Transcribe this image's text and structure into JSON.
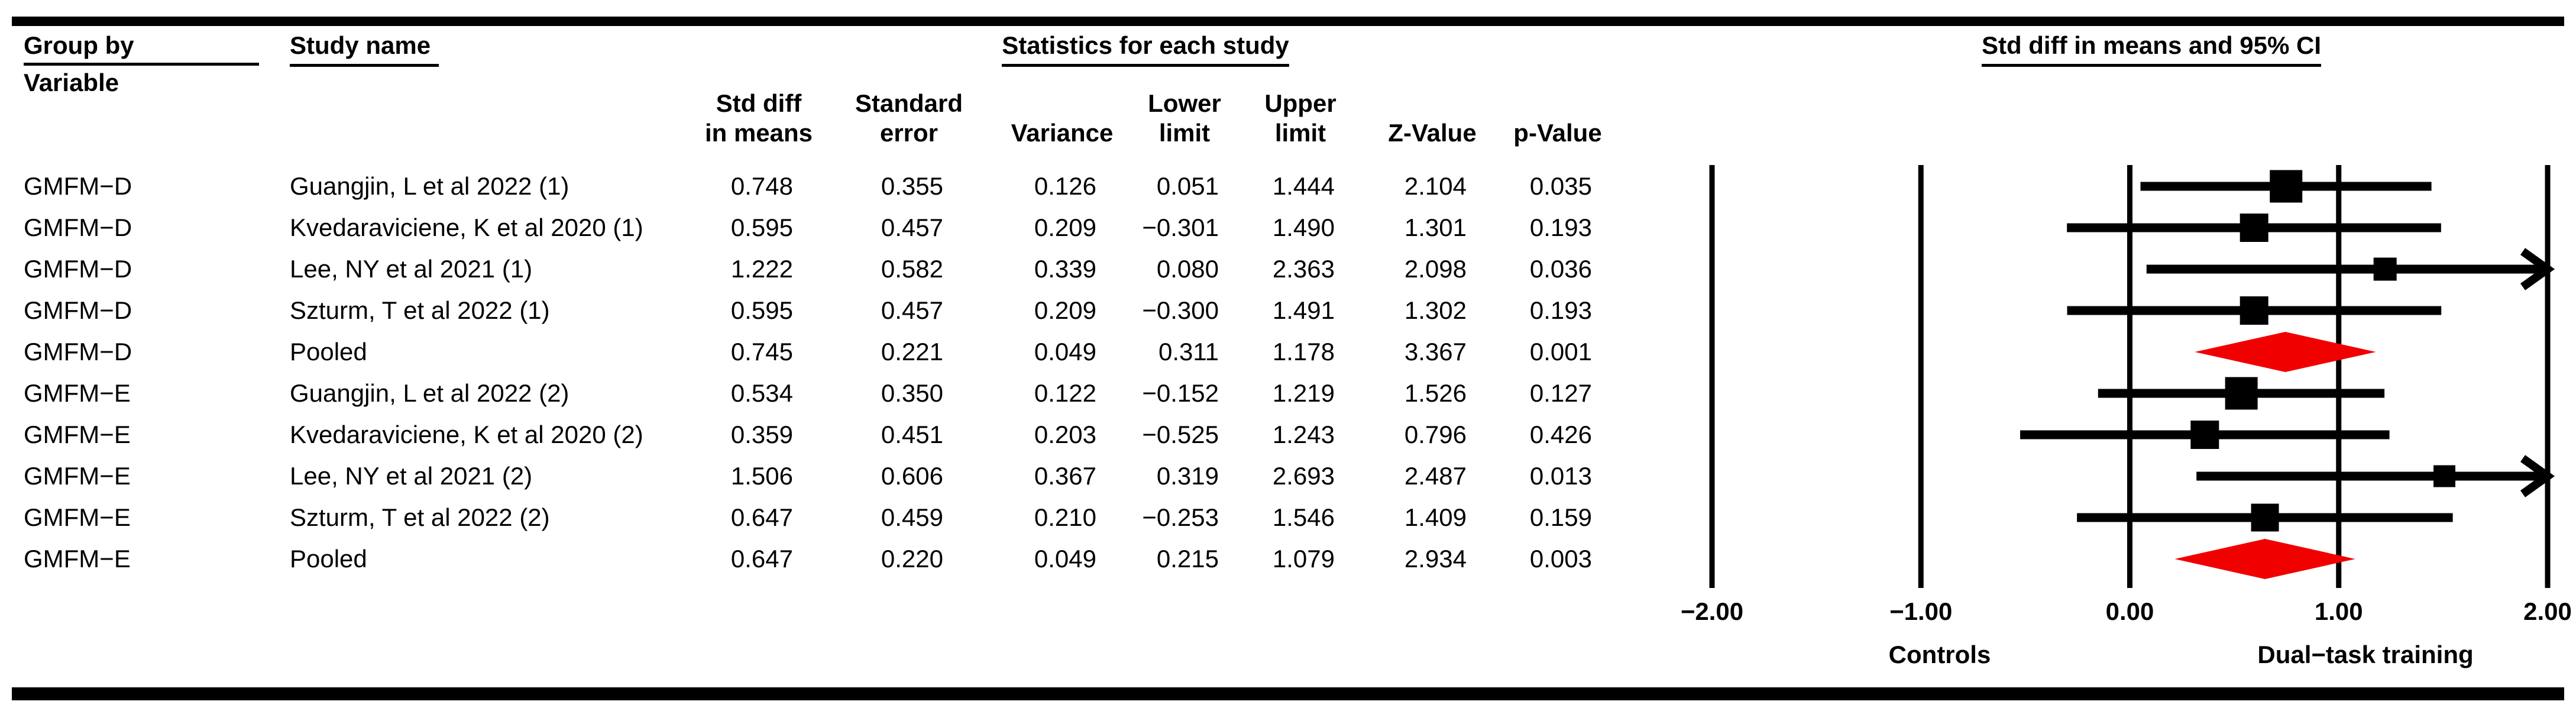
{
  "figure": {
    "headers": {
      "group_by_line1": "Group by",
      "group_by_line2": "Variable",
      "study_name": "Study name",
      "statistics": "Statistics for each study",
      "plot_title": "Std diff in means and 95% CI"
    },
    "stat_columns": [
      [
        "Std diff",
        "in means"
      ],
      [
        "Standard",
        "error"
      ],
      [
        "Variance"
      ],
      [
        "Lower",
        "limit"
      ],
      [
        "Upper",
        "limit"
      ],
      [
        "Z-Value"
      ],
      [
        "p-Value"
      ]
    ],
    "colors": {
      "text": "#000000",
      "rules": "#000000",
      "square_marker": "#000000",
      "diamond_marker": "#f10000"
    }
  },
  "chart_data": {
    "type": "forest",
    "title": "Std diff in means and 95% CI",
    "x_axis": {
      "min": -2,
      "max": 2,
      "tick_values": [
        -2,
        -1,
        0,
        1,
        2
      ],
      "tick_labels": [
        "-2.00",
        "-1.00",
        "0.00",
        "1.00",
        "2.00"
      ],
      "left_region_label": "Controls",
      "right_region_label": "Dual-task training",
      "grid": true
    },
    "rows": [
      {
        "group": "GMFM-D",
        "study": "Guangjin, L et al 2022 (1)",
        "std_diff": "0.748",
        "std_err": "0.355",
        "variance": "0.126",
        "lower": "0.051",
        "upper": "1.444",
        "z": "2.104",
        "p": "0.035",
        "marker": "square"
      },
      {
        "group": "GMFM-D",
        "study": "Kvedaraviciene, K et al 2020 (1)",
        "std_diff": "0.595",
        "std_err": "0.457",
        "variance": "0.209",
        "lower": "-0.301",
        "upper": "1.490",
        "z": "1.301",
        "p": "0.193",
        "marker": "square"
      },
      {
        "group": "GMFM-D",
        "study": "Lee, NY et al 2021 (1)",
        "std_diff": "1.222",
        "std_err": "0.582",
        "variance": "0.339",
        "lower": "0.080",
        "upper": "2.363",
        "z": "2.098",
        "p": "0.036",
        "marker": "square"
      },
      {
        "group": "GMFM-D",
        "study": "Szturm, T et al 2022 (1)",
        "std_diff": "0.595",
        "std_err": "0.457",
        "variance": "0.209",
        "lower": "-0.300",
        "upper": "1.491",
        "z": "1.302",
        "p": "0.193",
        "marker": "square"
      },
      {
        "group": "GMFM-D",
        "study": "Pooled",
        "std_diff": "0.745",
        "std_err": "0.221",
        "variance": "0.049",
        "lower": "0.311",
        "upper": "1.178",
        "z": "3.367",
        "p": "0.001",
        "marker": "diamond"
      },
      {
        "group": "GMFM-E",
        "study": "Guangjin, L et al 2022 (2)",
        "std_diff": "0.534",
        "std_err": "0.350",
        "variance": "0.122",
        "lower": "-0.152",
        "upper": "1.219",
        "z": "1.526",
        "p": "0.127",
        "marker": "square"
      },
      {
        "group": "GMFM-E",
        "study": "Kvedaraviciene, K et al 2020 (2)",
        "std_diff": "0.359",
        "std_err": "0.451",
        "variance": "0.203",
        "lower": "-0.525",
        "upper": "1.243",
        "z": "0.796",
        "p": "0.426",
        "marker": "square"
      },
      {
        "group": "GMFM-E",
        "study": "Lee, NY et al 2021 (2)",
        "std_diff": "1.506",
        "std_err": "0.606",
        "variance": "0.367",
        "lower": "0.319",
        "upper": "2.693",
        "z": "2.487",
        "p": "0.013",
        "marker": "square"
      },
      {
        "group": "GMFM-E",
        "study": "Szturm, T et al 2022 (2)",
        "std_diff": "0.647",
        "std_err": "0.459",
        "variance": "0.210",
        "lower": "-0.253",
        "upper": "1.546",
        "z": "1.409",
        "p": "0.159",
        "marker": "square"
      },
      {
        "group": "GMFM-E",
        "study": "Pooled",
        "std_diff": "0.647",
        "std_err": "0.220",
        "variance": "0.049",
        "lower": "0.215",
        "upper": "1.079",
        "z": "2.934",
        "p": "0.003",
        "marker": "diamond"
      }
    ]
  }
}
